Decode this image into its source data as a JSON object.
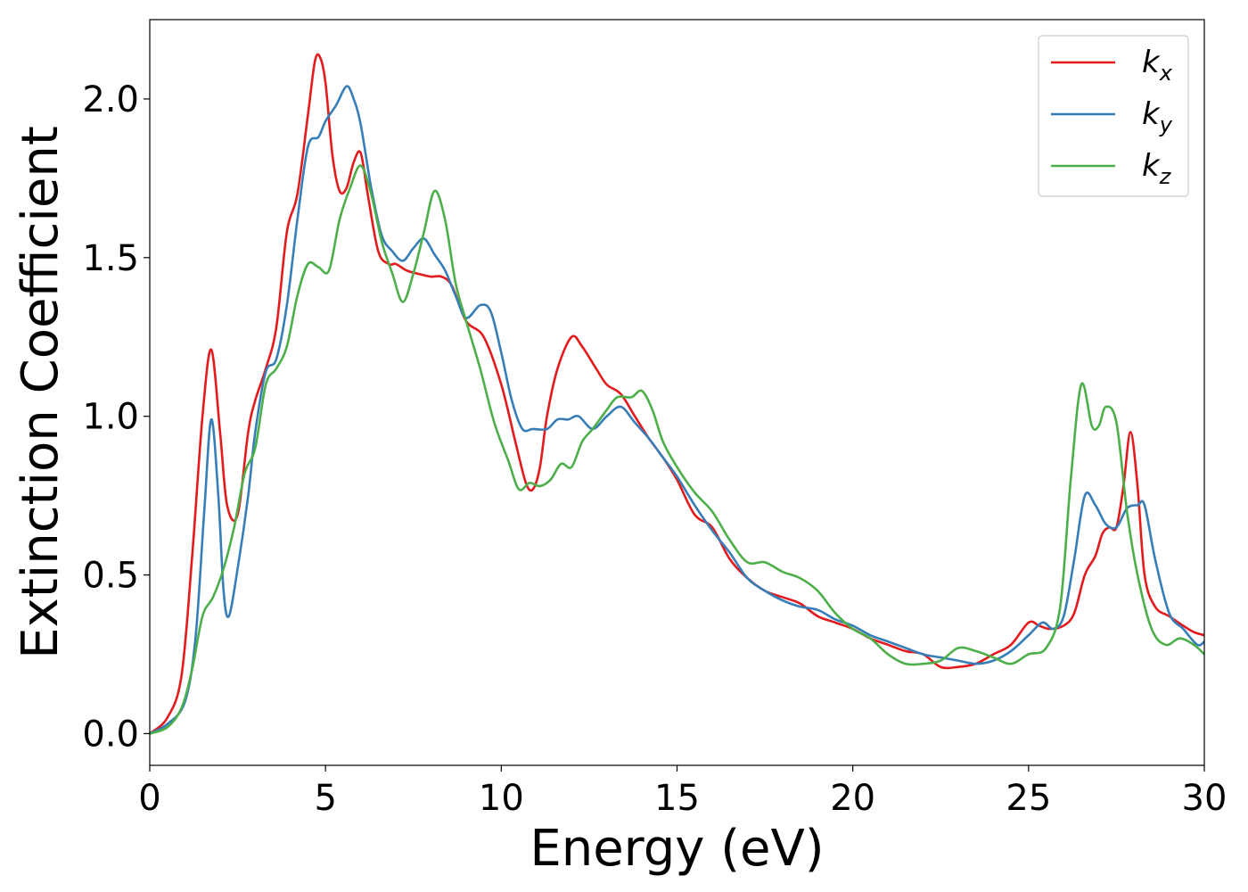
{
  "chart_data": {
    "type": "line",
    "xlabel": "Energy (eV)",
    "ylabel": "Extinction Coefficient",
    "xlim": [
      0,
      30
    ],
    "ylim": [
      -0.1,
      2.25
    ],
    "xticks": [
      0,
      5,
      10,
      15,
      20,
      25,
      30
    ],
    "xtick_labels": [
      "0",
      "5",
      "10",
      "15",
      "20",
      "25",
      "30"
    ],
    "yticks": [
      0.0,
      0.5,
      1.0,
      1.5,
      2.0
    ],
    "ytick_labels": [
      "0.0",
      "0.5",
      "1.0",
      "1.5",
      "2.0"
    ],
    "grid": false,
    "legend_position": "top-right",
    "series": [
      {
        "name": "kx",
        "label_main": "k",
        "label_sub": "x",
        "color": "#e41a1c",
        "x": [
          0,
          0.5,
          0.9,
          1.2,
          1.5,
          1.75,
          2.0,
          2.2,
          2.5,
          2.8,
          3.0,
          3.3,
          3.6,
          3.9,
          4.2,
          4.5,
          4.7,
          4.85,
          5.0,
          5.2,
          5.4,
          5.6,
          5.8,
          6.0,
          6.2,
          6.5,
          6.8,
          7.0,
          7.3,
          7.6,
          8.0,
          8.3,
          8.6,
          9.0,
          9.5,
          10.0,
          10.4,
          10.7,
          10.9,
          11.1,
          11.3,
          11.6,
          12.0,
          12.3,
          12.7,
          13.0,
          13.4,
          13.8,
          14.2,
          14.6,
          15.0,
          15.5,
          16.0,
          16.5,
          17.0,
          17.5,
          18.0,
          18.5,
          19.0,
          19.5,
          20.0,
          20.5,
          21.0,
          21.5,
          22.0,
          22.5,
          23.0,
          23.5,
          24.0,
          24.5,
          25.0,
          25.3,
          25.6,
          26.0,
          26.3,
          26.6,
          26.9,
          27.1,
          27.3,
          27.5,
          27.7,
          27.9,
          28.1,
          28.3,
          28.6,
          29.0,
          29.4,
          29.7,
          30.0
        ],
        "values": [
          0.0,
          0.05,
          0.18,
          0.55,
          1.0,
          1.21,
          0.95,
          0.72,
          0.69,
          0.95,
          1.05,
          1.15,
          1.28,
          1.58,
          1.7,
          1.95,
          2.12,
          2.13,
          2.05,
          1.82,
          1.71,
          1.72,
          1.8,
          1.83,
          1.7,
          1.52,
          1.48,
          1.48,
          1.46,
          1.45,
          1.44,
          1.44,
          1.41,
          1.3,
          1.25,
          1.1,
          0.92,
          0.79,
          0.77,
          0.84,
          1.0,
          1.15,
          1.25,
          1.22,
          1.15,
          1.1,
          1.07,
          1.0,
          0.93,
          0.87,
          0.8,
          0.69,
          0.65,
          0.55,
          0.49,
          0.45,
          0.43,
          0.41,
          0.37,
          0.35,
          0.33,
          0.3,
          0.28,
          0.26,
          0.25,
          0.21,
          0.21,
          0.22,
          0.25,
          0.28,
          0.35,
          0.34,
          0.33,
          0.34,
          0.38,
          0.5,
          0.56,
          0.63,
          0.65,
          0.65,
          0.78,
          0.95,
          0.78,
          0.5,
          0.4,
          0.37,
          0.34,
          0.32,
          0.31
        ]
      },
      {
        "name": "ky",
        "label_main": "k",
        "label_sub": "y",
        "color": "#377eb8",
        "x": [
          0,
          0.5,
          1.0,
          1.3,
          1.55,
          1.75,
          1.95,
          2.1,
          2.25,
          2.5,
          2.8,
          3.0,
          3.3,
          3.6,
          3.9,
          4.2,
          4.5,
          4.8,
          5.0,
          5.3,
          5.6,
          5.8,
          6.0,
          6.3,
          6.6,
          6.9,
          7.2,
          7.5,
          7.8,
          8.1,
          8.4,
          8.7,
          9.0,
          9.4,
          9.7,
          10.0,
          10.3,
          10.6,
          10.9,
          11.3,
          11.6,
          11.9,
          12.2,
          12.6,
          13.0,
          13.4,
          13.8,
          14.2,
          14.6,
          15.0,
          15.5,
          16.0,
          16.5,
          17.0,
          17.5,
          18.0,
          18.5,
          19.0,
          19.5,
          20.0,
          20.5,
          21.0,
          21.5,
          22.0,
          22.5,
          23.0,
          23.5,
          24.0,
          24.5,
          25.0,
          25.4,
          25.7,
          26.0,
          26.3,
          26.6,
          26.9,
          27.2,
          27.5,
          27.8,
          28.1,
          28.3,
          28.6,
          29.0,
          29.4,
          29.8,
          30.0
        ],
        "values": [
          0.0,
          0.03,
          0.1,
          0.3,
          0.7,
          0.99,
          0.75,
          0.45,
          0.37,
          0.52,
          0.75,
          0.95,
          1.14,
          1.18,
          1.35,
          1.62,
          1.85,
          1.88,
          1.93,
          1.98,
          2.04,
          2.0,
          1.92,
          1.72,
          1.57,
          1.52,
          1.49,
          1.53,
          1.56,
          1.51,
          1.46,
          1.38,
          1.31,
          1.35,
          1.33,
          1.2,
          1.05,
          0.96,
          0.96,
          0.96,
          0.99,
          0.99,
          1.0,
          0.96,
          1.0,
          1.03,
          0.98,
          0.93,
          0.87,
          0.81,
          0.72,
          0.64,
          0.57,
          0.49,
          0.45,
          0.42,
          0.4,
          0.39,
          0.36,
          0.34,
          0.31,
          0.29,
          0.27,
          0.25,
          0.24,
          0.23,
          0.22,
          0.23,
          0.26,
          0.31,
          0.35,
          0.33,
          0.37,
          0.55,
          0.75,
          0.72,
          0.66,
          0.65,
          0.71,
          0.72,
          0.72,
          0.55,
          0.38,
          0.33,
          0.28,
          0.29
        ]
      },
      {
        "name": "kz",
        "label_main": "k",
        "label_sub": "z",
        "color": "#4daf4a",
        "x": [
          0,
          0.5,
          0.9,
          1.2,
          1.5,
          1.8,
          2.1,
          2.4,
          2.7,
          3.0,
          3.3,
          3.6,
          3.9,
          4.2,
          4.5,
          4.8,
          5.1,
          5.4,
          5.7,
          6.0,
          6.3,
          6.6,
          6.9,
          7.2,
          7.5,
          7.8,
          8.1,
          8.4,
          8.7,
          9.0,
          9.4,
          9.8,
          10.2,
          10.5,
          10.8,
          11.1,
          11.4,
          11.7,
          12.0,
          12.3,
          12.6,
          13.0,
          13.3,
          13.7,
          14.0,
          14.3,
          14.6,
          15.0,
          15.5,
          16.0,
          16.5,
          17.0,
          17.5,
          18.0,
          18.5,
          19.0,
          19.5,
          20.0,
          20.5,
          21.0,
          21.5,
          22.0,
          22.5,
          23.0,
          23.5,
          24.0,
          24.5,
          25.0,
          25.5,
          25.9,
          26.2,
          26.5,
          26.8,
          27.0,
          27.2,
          27.5,
          27.8,
          28.1,
          28.5,
          28.9,
          29.3,
          29.7,
          30.0
        ],
        "values": [
          0.0,
          0.02,
          0.08,
          0.2,
          0.37,
          0.43,
          0.52,
          0.65,
          0.82,
          0.9,
          1.1,
          1.15,
          1.22,
          1.38,
          1.48,
          1.47,
          1.46,
          1.62,
          1.72,
          1.79,
          1.7,
          1.55,
          1.45,
          1.36,
          1.45,
          1.58,
          1.71,
          1.62,
          1.42,
          1.3,
          1.15,
          0.98,
          0.86,
          0.77,
          0.79,
          0.78,
          0.8,
          0.85,
          0.84,
          0.92,
          0.96,
          1.02,
          1.06,
          1.06,
          1.08,
          1.02,
          0.92,
          0.84,
          0.76,
          0.7,
          0.61,
          0.54,
          0.54,
          0.51,
          0.49,
          0.45,
          0.38,
          0.33,
          0.3,
          0.25,
          0.22,
          0.22,
          0.23,
          0.27,
          0.26,
          0.24,
          0.22,
          0.25,
          0.27,
          0.4,
          0.8,
          1.1,
          0.97,
          0.97,
          1.03,
          0.98,
          0.7,
          0.5,
          0.33,
          0.28,
          0.3,
          0.28,
          0.25
        ]
      }
    ]
  }
}
